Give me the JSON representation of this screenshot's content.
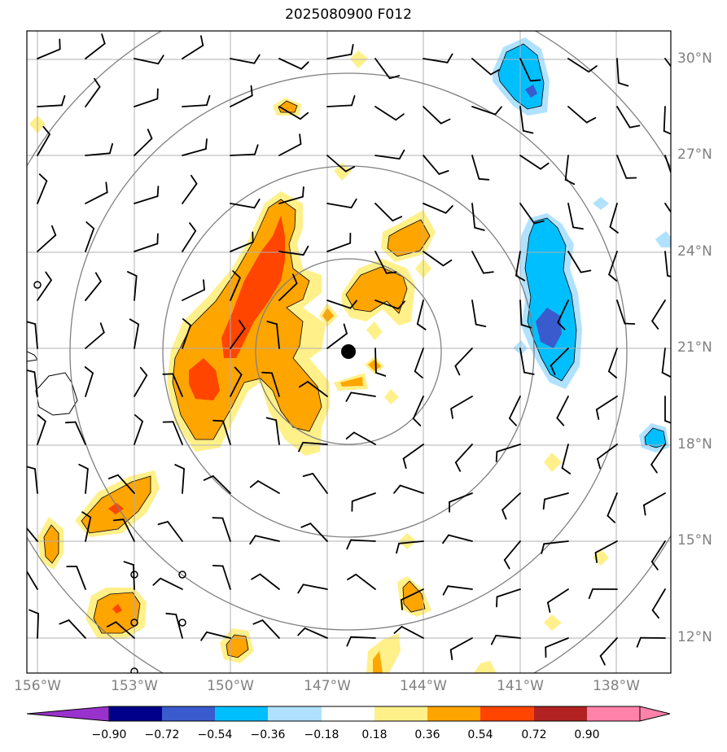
{
  "title": "2025080900 F012",
  "map": {
    "lat_labels": [
      "30°N",
      "27°N",
      "24°N",
      "21°N",
      "18°N",
      "15°N",
      "12°N"
    ],
    "lon_labels": [
      "156°W",
      "153°W",
      "150°W",
      "147°W",
      "144°W",
      "141°W",
      "138°W"
    ],
    "center_marker": "storm-center-dot",
    "range_rings": 4,
    "grid_color": "#b0b0b0",
    "ring_color": "#808080"
  },
  "colorbar": {
    "colors": [
      "#9932cc",
      "#00008b",
      "#3a5bcd",
      "#00bfff",
      "#b0e2ff",
      "#ffffff",
      "#fff08a",
      "#ffa500",
      "#ff4500",
      "#b22222",
      "#ff82ab"
    ],
    "tick_labels": [
      "−0.90",
      "−0.72",
      "−0.54",
      "−0.36",
      "−0.18",
      "0.18",
      "0.36",
      "0.54",
      "0.72",
      "0.90"
    ]
  }
}
